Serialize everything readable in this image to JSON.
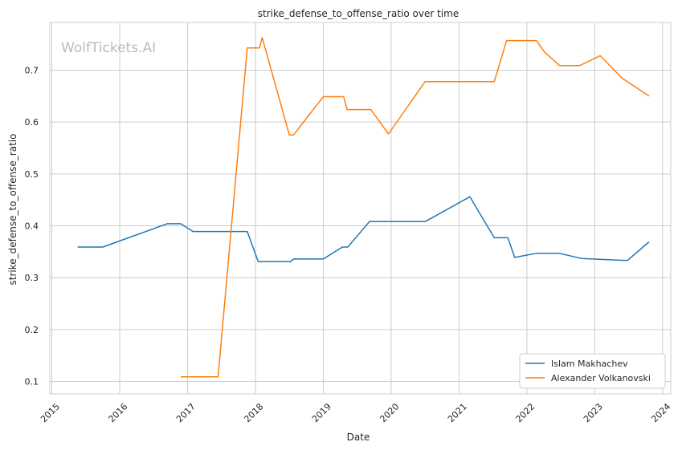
{
  "chart_data": {
    "type": "line",
    "title": "strike_defense_to_offense_ratio over time",
    "xlabel": "Date",
    "ylabel": "strike_defense_to_offense_ratio",
    "watermark": "WolfTickets.AI",
    "xlim": [
      2014.97,
      2024.12
    ],
    "ylim": [
      0.076,
      0.792
    ],
    "x_ticks": [
      2015,
      2016,
      2017,
      2018,
      2019,
      2020,
      2021,
      2022,
      2023,
      2024
    ],
    "x_tick_labels": [
      "2015",
      "2016",
      "2017",
      "2018",
      "2019",
      "2020",
      "2021",
      "2022",
      "2023",
      "2024"
    ],
    "y_ticks": [
      0.1,
      0.2,
      0.3,
      0.4,
      0.5,
      0.6,
      0.7
    ],
    "y_tick_labels": [
      "0.1",
      "0.2",
      "0.3",
      "0.4",
      "0.5",
      "0.6",
      "0.7"
    ],
    "grid": true,
    "legend_position": "lower right",
    "series": [
      {
        "name": "Islam Makhachev",
        "color": "#1f77b4",
        "x": [
          2015.38,
          2015.75,
          2016.7,
          2016.9,
          2017.08,
          2017.88,
          2018.04,
          2018.52,
          2018.56,
          2019.0,
          2019.28,
          2019.36,
          2019.68,
          2020.5,
          2021.16,
          2021.52,
          2021.72,
          2021.82,
          2022.14,
          2022.48,
          2022.8,
          2023.48,
          2023.8
        ],
        "y": [
          0.359,
          0.359,
          0.404,
          0.404,
          0.389,
          0.389,
          0.331,
          0.331,
          0.336,
          0.336,
          0.359,
          0.359,
          0.408,
          0.408,
          0.456,
          0.377,
          0.377,
          0.339,
          0.347,
          0.347,
          0.337,
          0.333,
          0.369
        ]
      },
      {
        "name": "Alexander Volkanovski",
        "color": "#ff7f0e",
        "x": [
          2016.9,
          2017.45,
          2017.88,
          2018.06,
          2018.1,
          2018.5,
          2018.56,
          2019.0,
          2019.3,
          2019.35,
          2019.7,
          2019.96,
          2020.5,
          2021.52,
          2021.7,
          2022.14,
          2022.26,
          2022.48,
          2022.78,
          2023.08,
          2023.4,
          2023.8
        ],
        "y": [
          0.109,
          0.109,
          0.743,
          0.743,
          0.763,
          0.575,
          0.575,
          0.649,
          0.649,
          0.624,
          0.624,
          0.577,
          0.678,
          0.678,
          0.757,
          0.757,
          0.735,
          0.709,
          0.709,
          0.728,
          0.685,
          0.65
        ]
      }
    ]
  }
}
